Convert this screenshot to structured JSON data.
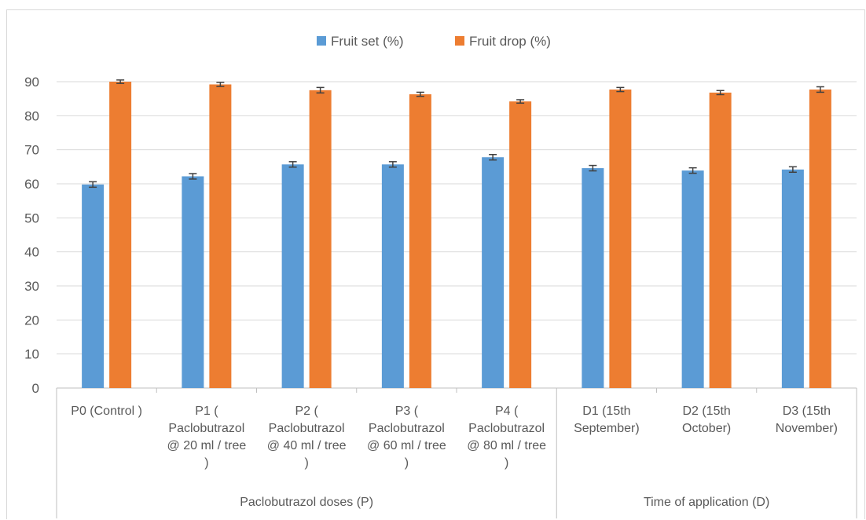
{
  "chart_data": {
    "type": "bar",
    "title": "",
    "xlabel": "",
    "ylabel": "",
    "ylim": [
      0,
      90
    ],
    "yticks": [
      0,
      10,
      20,
      30,
      40,
      50,
      60,
      70,
      80,
      90
    ],
    "grid": true,
    "legend_position": "top-center",
    "categories": [
      [
        "P0  (Control )"
      ],
      [
        "P1 (",
        "Paclobutrazol",
        "@ 20 ml / tree",
        ")"
      ],
      [
        "P2 (",
        "Paclobutrazol",
        "@ 40 ml / tree",
        ")"
      ],
      [
        "P3 (",
        "Paclobutrazol",
        "@ 60 ml / tree",
        ")"
      ],
      [
        "P4 (",
        "Paclobutrazol",
        "@ 80 ml / tree",
        ")"
      ],
      [
        "D1 (15th",
        "September)"
      ],
      [
        "D2 (15th",
        "October)"
      ],
      [
        "D3 (15th",
        "November)"
      ]
    ],
    "groups": [
      {
        "label": "Paclobutrazol doses (P)",
        "count": 5
      },
      {
        "label": "Time of application (D)",
        "count": 3
      }
    ],
    "series": [
      {
        "name": "Fruit set (%)",
        "color": "#5B9BD5",
        "values": [
          59.8,
          62.2,
          65.7,
          65.7,
          67.8,
          64.6,
          63.9,
          64.2
        ],
        "errors": [
          0.8,
          0.8,
          0.8,
          0.8,
          0.8,
          0.8,
          0.8,
          0.8
        ]
      },
      {
        "name": "Fruit drop (%)",
        "color": "#ED7D31",
        "values": [
          90.0,
          89.2,
          87.5,
          86.3,
          84.2,
          87.7,
          86.8,
          87.7
        ],
        "errors": [
          0.5,
          0.6,
          0.8,
          0.6,
          0.5,
          0.6,
          0.6,
          0.8
        ]
      }
    ],
    "colors": {
      "grid": "#d9d9d9",
      "axis": "#bfbfbf",
      "text": "#595959",
      "errorbar": "#404040"
    }
  }
}
